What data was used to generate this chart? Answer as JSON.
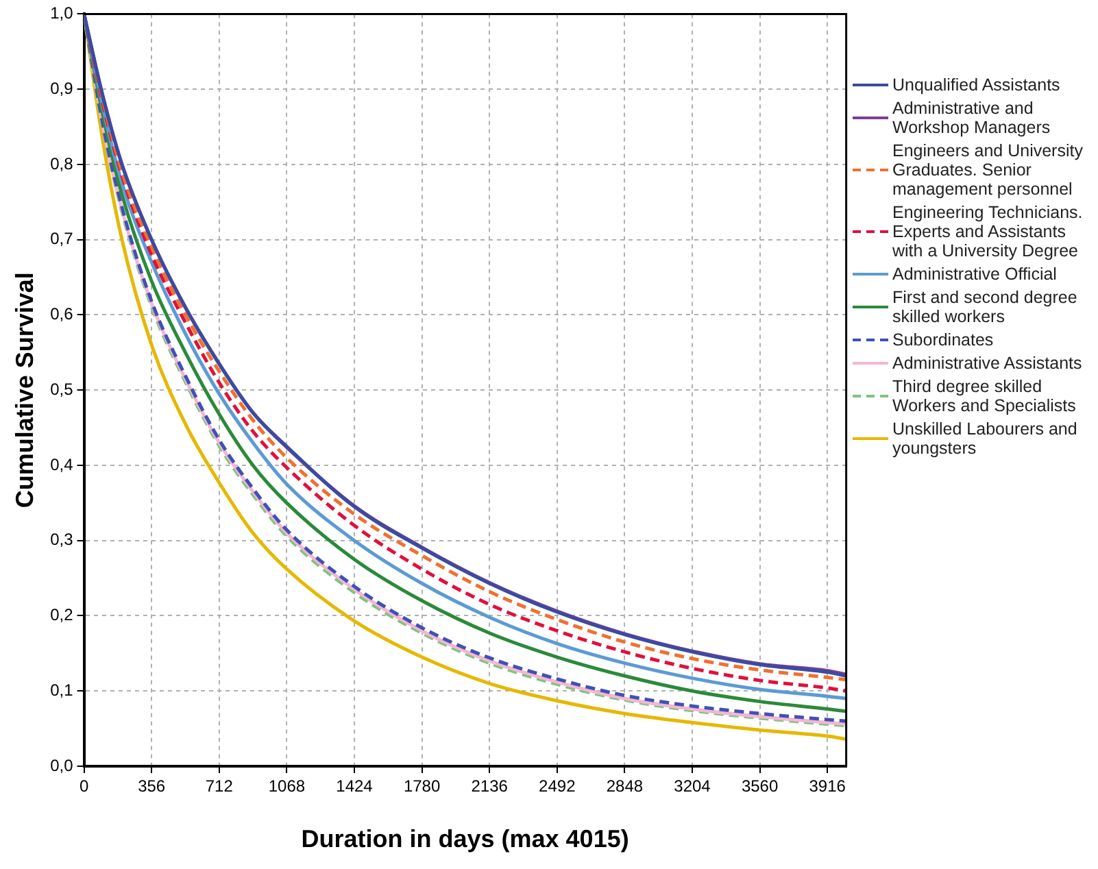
{
  "chart_data": {
    "type": "line",
    "xlabel": "Duration in days (max 4015)",
    "ylabel": "Cumulative Survival",
    "x": [
      0,
      100,
      200,
      356,
      534,
      712,
      890,
      1068,
      1424,
      1780,
      2136,
      2492,
      2848,
      3204,
      3560,
      3916,
      4015
    ],
    "xlim": [
      0,
      4015
    ],
    "xticks": [
      0,
      356,
      712,
      1068,
      1424,
      1780,
      2136,
      2492,
      2848,
      3204,
      3560,
      3916
    ],
    "ylim": [
      0,
      1
    ],
    "yticks": [
      {
        "value": 0,
        "label": "0,0"
      },
      {
        "value": 0.1,
        "label": "0,1"
      },
      {
        "value": 0.2,
        "label": "0,2"
      },
      {
        "value": 0.3,
        "label": "0,3"
      },
      {
        "value": 0.4,
        "label": "0,4"
      },
      {
        "value": 0.5,
        "label": "0,5"
      },
      {
        "value": 0.6,
        "label": "0,6"
      },
      {
        "value": 0.7,
        "label": "0,7"
      },
      {
        "value": 0.8,
        "label": "0,8"
      },
      {
        "value": 0.9,
        "label": "0,9"
      },
      {
        "value": 1,
        "label": "1,0"
      }
    ],
    "grid": true,
    "legend": "right",
    "marker": "none",
    "series": [
      {
        "name": "Unqualified Assistants",
        "color": "#3b4ba0",
        "line_style": "solid",
        "values": [
          1,
          0.89,
          0.8,
          0.7,
          0.61,
          0.535,
          0.47,
          0.425,
          0.345,
          0.29,
          0.243,
          0.205,
          0.175,
          0.152,
          0.135,
          0.125,
          0.12
        ]
      },
      {
        "name": "Administrative and Workshop Managers",
        "color": "#7b3f98",
        "line_style": "solid",
        "values": [
          1,
          0.89,
          0.8,
          0.7,
          0.61,
          0.535,
          0.47,
          0.424,
          0.346,
          0.291,
          0.244,
          0.206,
          0.176,
          0.153,
          0.136,
          0.127,
          0.122
        ]
      },
      {
        "name": "Engineers and University Graduates. Senior management personnel",
        "color": "#f07030",
        "line_style": "dashed",
        "values": [
          1,
          0.885,
          0.79,
          0.69,
          0.6,
          0.525,
          0.46,
          0.41,
          0.335,
          0.28,
          0.232,
          0.195,
          0.165,
          0.143,
          0.128,
          0.118,
          0.115
        ]
      },
      {
        "name": "Engineering Technicians. Experts and Assistants with a University Degree",
        "color": "#e0103c",
        "line_style": "dashed",
        "values": [
          1,
          0.88,
          0.785,
          0.68,
          0.59,
          0.51,
          0.445,
          0.397,
          0.32,
          0.262,
          0.215,
          0.18,
          0.152,
          0.13,
          0.114,
          0.104,
          0.1
        ]
      },
      {
        "name": "Administrative Official",
        "color": "#5b9bd5",
        "line_style": "solid",
        "values": [
          1,
          0.875,
          0.775,
          0.67,
          0.575,
          0.495,
          0.43,
          0.375,
          0.3,
          0.243,
          0.198,
          0.163,
          0.137,
          0.117,
          0.102,
          0.093,
          0.09
        ]
      },
      {
        "name": "First and second degree skilled workers",
        "color": "#2a8a3a",
        "line_style": "solid",
        "values": [
          1,
          0.865,
          0.76,
          0.645,
          0.55,
          0.468,
          0.4,
          0.35,
          0.275,
          0.22,
          0.177,
          0.145,
          0.12,
          0.1,
          0.086,
          0.076,
          0.073
        ]
      },
      {
        "name": "Subordinates",
        "color": "#3f51b5",
        "line_style": "dashed",
        "values": [
          1,
          0.852,
          0.743,
          0.618,
          0.519,
          0.434,
          0.369,
          0.314,
          0.239,
          0.184,
          0.144,
          0.116,
          0.094,
          0.08,
          0.07,
          0.062,
          0.06
        ]
      },
      {
        "name": "Administrative Assistants",
        "color": "#f4b6d2",
        "line_style": "solid",
        "values": [
          1,
          0.85,
          0.74,
          0.615,
          0.515,
          0.43,
          0.365,
          0.31,
          0.235,
          0.18,
          0.14,
          0.112,
          0.09,
          0.076,
          0.066,
          0.058,
          0.056
        ]
      },
      {
        "name": "Third degree skilled Workers and Specialists",
        "color": "#7cc47c",
        "line_style": "dashed",
        "values": [
          1,
          0.848,
          0.737,
          0.611,
          0.511,
          0.426,
          0.361,
          0.306,
          0.231,
          0.177,
          0.137,
          0.109,
          0.088,
          0.074,
          0.064,
          0.056,
          0.054
        ]
      },
      {
        "name": "Unskilled Labourers and youngsters",
        "color": "#e6b800",
        "line_style": "solid",
        "values": [
          1,
          0.83,
          0.7,
          0.56,
          0.455,
          0.377,
          0.31,
          0.262,
          0.193,
          0.145,
          0.11,
          0.087,
          0.07,
          0.058,
          0.048,
          0.04,
          0.036
        ]
      }
    ]
  }
}
